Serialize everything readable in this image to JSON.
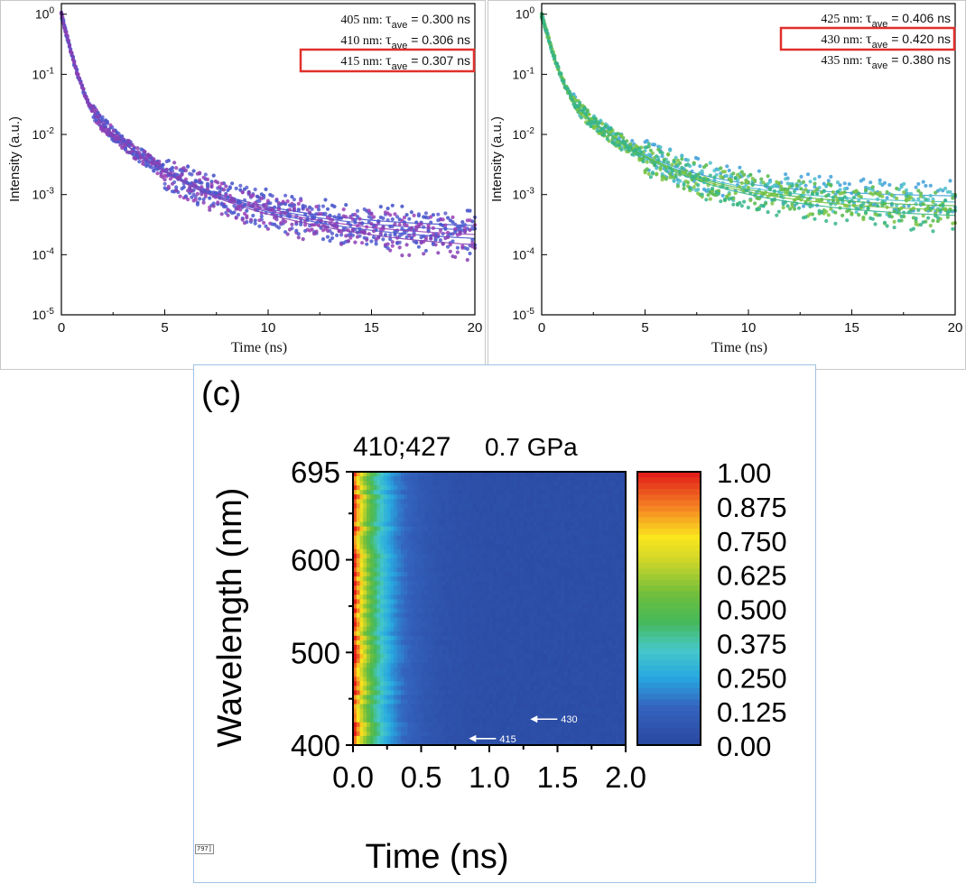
{
  "chart_data": [
    {
      "type": "scatter",
      "panel": "a",
      "xlabel": "Time (ns)",
      "ylabel": "Intensity (a.u.)",
      "x_ticks": [
        "0",
        "5",
        "10",
        "15",
        "20"
      ],
      "xlim": [
        0,
        20
      ],
      "y_scale": "log",
      "ylim": [
        1e-05,
        1.5
      ],
      "y_ticks": [
        {
          "base": "10",
          "exp": "0",
          "value": 1
        },
        {
          "base": "10",
          "exp": "-1",
          "value": 0.1
        },
        {
          "base": "10",
          "exp": "-2",
          "value": 0.01
        },
        {
          "base": "10",
          "exp": "-3",
          "value": 0.001
        },
        {
          "base": "10",
          "exp": "-4",
          "value": 0.0001
        },
        {
          "base": "10",
          "exp": "-5",
          "value": 1e-05
        }
      ],
      "legend": [
        {
          "wavelength": "405 nm:",
          "symbol": "τ",
          "sub": "ave",
          "value": "= 0.300 ns",
          "highlighted": false
        },
        {
          "wavelength": "410 nm:",
          "symbol": "τ",
          "sub": "ave",
          "value": "= 0.306 ns",
          "highlighted": false
        },
        {
          "wavelength": "415 nm:",
          "symbol": "τ",
          "sub": "ave",
          "value": "= 0.307 ns",
          "highlighted": true
        }
      ],
      "series_colors": [
        "#3f4fc8",
        "#5a5fd0",
        "#9a3fb8",
        "#4b58cf",
        "#8840b4"
      ],
      "decay": {
        "a1": 0.93,
        "t1": 0.3,
        "a2": 0.052,
        "t2": 1.3,
        "a3": 0.004,
        "t3": 4.0,
        "floor": 0.00022
      },
      "series_floors": [
        0.00028,
        0.00023,
        0.00019,
        0.00016,
        0.00012
      ]
    },
    {
      "type": "scatter",
      "panel": "b",
      "xlabel": "Time (ns)",
      "ylabel": "Intensity (a.u.)",
      "x_ticks": [
        "0",
        "5",
        "10",
        "15",
        "20"
      ],
      "xlim": [
        0,
        20
      ],
      "y_scale": "log",
      "ylim": [
        1e-05,
        1.5
      ],
      "y_ticks": [
        {
          "base": "10",
          "exp": "0",
          "value": 1
        },
        {
          "base": "10",
          "exp": "-1",
          "value": 0.1
        },
        {
          "base": "10",
          "exp": "-2",
          "value": 0.01
        },
        {
          "base": "10",
          "exp": "-3",
          "value": 0.001
        },
        {
          "base": "10",
          "exp": "-4",
          "value": 0.0001
        },
        {
          "base": "10",
          "exp": "-5",
          "value": 1e-05
        }
      ],
      "legend": [
        {
          "wavelength": "425 nm:",
          "symbol": "τ",
          "sub": "ave",
          "value": "= 0.406 ns",
          "highlighted": false
        },
        {
          "wavelength": "430 nm:",
          "symbol": "τ",
          "sub": "ave",
          "value": "= 0.420 ns",
          "highlighted": true
        },
        {
          "wavelength": "435 nm:",
          "symbol": "τ",
          "sub": "ave",
          "value": "= 0.380 ns",
          "highlighted": false
        }
      ],
      "series_colors": [
        "#3fa0d8",
        "#4dc0c8",
        "#55b84a",
        "#7cc442",
        "#35b58a"
      ],
      "decay": {
        "a1": 0.9,
        "t1": 0.33,
        "a2": 0.07,
        "t2": 1.4,
        "a3": 0.006,
        "t3": 4.2,
        "floor": 0.0006
      },
      "series_floors": [
        0.0009,
        0.0007,
        0.0006,
        0.0005,
        0.0004
      ]
    },
    {
      "type": "heatmap",
      "panel": "c",
      "panel_label": "(c)",
      "title": "410;427",
      "subtitle": "0.7 GPa",
      "xlabel": "Time (ns)",
      "ylabel": "Wavelength (nm)",
      "x_ticks": [
        "0.0",
        "0.5",
        "1.0",
        "1.5",
        "2.0"
      ],
      "xlim": [
        0,
        2
      ],
      "y_ticks": [
        "695",
        "600",
        "500",
        "400"
      ],
      "ylim": [
        400,
        695
      ],
      "colorbar_ticks": [
        "1.00",
        "0.875",
        "0.750",
        "0.625",
        "0.500",
        "0.375",
        "0.250",
        "0.125",
        "0.00"
      ],
      "colorbar_range": [
        0,
        1
      ],
      "decay_constant_ns": 0.18,
      "background_level": 0.03,
      "annotations": [
        {
          "text": "430",
          "x": 1.3,
          "y": 428
        },
        {
          "text": "415",
          "x": 0.85,
          "y": 407
        }
      ]
    }
  ],
  "footer_tag": "797]"
}
